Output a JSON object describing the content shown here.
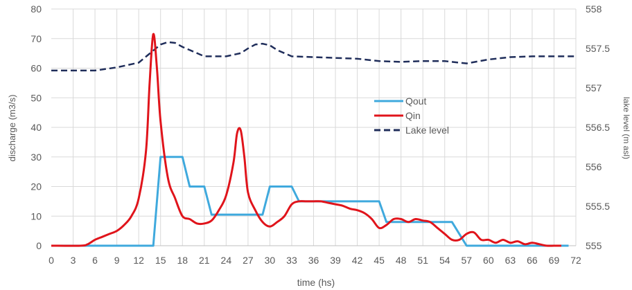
{
  "chart_data": {
    "type": "line",
    "xlabel": "time (hs)",
    "ylabel": "discharge (m3/s)",
    "y2label": "lake level (m asl)",
    "xlim": [
      0,
      72
    ],
    "ylim": [
      0,
      80
    ],
    "y2lim": [
      555,
      558
    ],
    "x_ticks": [
      0,
      3,
      6,
      9,
      12,
      15,
      18,
      21,
      24,
      27,
      30,
      33,
      36,
      39,
      42,
      45,
      48,
      51,
      54,
      57,
      60,
      63,
      66,
      69,
      72
    ],
    "y_ticks": [
      0,
      10,
      20,
      30,
      40,
      50,
      60,
      70,
      80
    ],
    "y2_ticks": [
      "555",
      "555.5",
      "556",
      "556.5",
      "557",
      "557.5",
      "558"
    ],
    "grid": true,
    "legend_position": "center-right",
    "series": [
      {
        "name": "Qout",
        "axis": "left",
        "color": "#3fa9dd",
        "style": "solid",
        "x": [
          0,
          14,
          15,
          18,
          19,
          21,
          22,
          29,
          30,
          33,
          34,
          45,
          46,
          55,
          57,
          71
        ],
        "y": [
          0,
          0,
          30,
          30,
          20,
          20,
          10.5,
          10.5,
          20,
          20,
          15,
          15,
          8,
          8,
          0,
          0
        ]
      },
      {
        "name": "Qin",
        "axis": "left",
        "color": "#e0141b",
        "style": "solid",
        "x": [
          0,
          4,
          5,
          6,
          7,
          8,
          9,
          10,
          11,
          12,
          13,
          13.5,
          14,
          14.5,
          15,
          16,
          17,
          18,
          19,
          20,
          21,
          22,
          23,
          24,
          25,
          25.5,
          26,
          26.5,
          27,
          28,
          29,
          30,
          31,
          32,
          33,
          34,
          35,
          36,
          37,
          38,
          39,
          40,
          41,
          42,
          43,
          44,
          45,
          46,
          47,
          48,
          49,
          50,
          51,
          52,
          53,
          54,
          55,
          56,
          57,
          58,
          59,
          60,
          61,
          62,
          63,
          64,
          65,
          66,
          67,
          68,
          69,
          70
        ],
        "y": [
          0,
          0,
          0.5,
          2,
          3,
          4,
          5,
          7,
          10,
          16,
          32,
          55,
          71.5,
          60,
          42,
          23,
          16,
          10,
          9,
          7.5,
          7.5,
          8.5,
          12,
          17,
          28,
          38,
          39,
          30,
          18,
          12,
          8,
          6.5,
          8,
          10,
          14,
          15,
          15,
          15,
          15,
          14.5,
          14,
          13.5,
          12.5,
          12,
          11,
          9,
          6,
          7,
          9,
          9,
          8,
          9,
          8.5,
          8,
          6,
          4,
          2,
          2,
          4,
          4.5,
          2,
          2,
          1,
          2,
          1,
          1.5,
          0.5,
          1,
          0.5,
          0,
          0,
          0
        ]
      },
      {
        "name": "Lake level",
        "axis": "right",
        "color": "#1f2d5a",
        "style": "dashed",
        "x": [
          0,
          3,
          6,
          9,
          12,
          15,
          16,
          17,
          18,
          19,
          21,
          24,
          26,
          27,
          28,
          29,
          30,
          31,
          33,
          36,
          39,
          42,
          45,
          48,
          51,
          54,
          57,
          60,
          63,
          66,
          69,
          72
        ],
        "y": [
          557.22,
          557.22,
          557.22,
          557.26,
          557.32,
          557.55,
          557.58,
          557.57,
          557.52,
          557.48,
          557.4,
          557.4,
          557.44,
          557.5,
          557.55,
          557.56,
          557.54,
          557.48,
          557.4,
          557.39,
          557.38,
          557.37,
          557.34,
          557.33,
          557.34,
          557.34,
          557.31,
          557.36,
          557.39,
          557.4,
          557.4,
          557.4
        ]
      }
    ]
  }
}
